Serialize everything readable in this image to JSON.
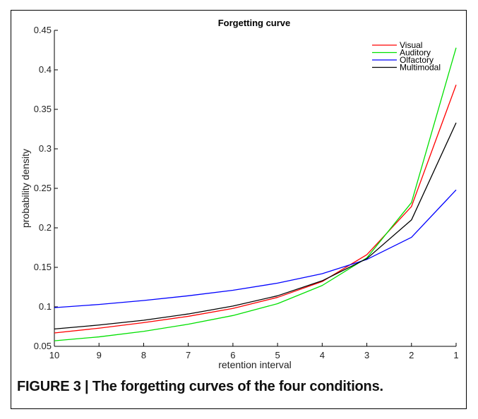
{
  "caption": "FIGURE 3 | The forgetting curves of the four conditions.",
  "chart_data": {
    "type": "line",
    "title": "Forgetting curve",
    "xlabel": "retention interval",
    "ylabel": "probability density",
    "x": [
      10,
      9,
      8,
      7,
      6,
      5,
      4,
      3,
      2,
      1
    ],
    "x_reversed": true,
    "xlim": [
      10,
      1
    ],
    "ylim": [
      0.05,
      0.45
    ],
    "xticks": [
      "10",
      "9",
      "8",
      "7",
      "6",
      "5",
      "4",
      "3",
      "2",
      "1"
    ],
    "yticks": [
      "0.05",
      "0.1",
      "0.15",
      "0.2",
      "0.25",
      "0.3",
      "0.35",
      "0.4",
      "0.45"
    ],
    "grid": false,
    "legend_position": "top-right",
    "series": [
      {
        "name": "Visual",
        "color": "#ff0000",
        "values": [
          0.067,
          0.073,
          0.08,
          0.088,
          0.098,
          0.112,
          0.132,
          0.166,
          0.227,
          0.381
        ]
      },
      {
        "name": "Auditory",
        "color": "#00e000",
        "values": [
          0.057,
          0.062,
          0.069,
          0.078,
          0.089,
          0.104,
          0.127,
          0.162,
          0.232,
          0.428
        ]
      },
      {
        "name": "Olfactory",
        "color": "#0000ff",
        "values": [
          0.099,
          0.103,
          0.108,
          0.114,
          0.121,
          0.13,
          0.142,
          0.16,
          0.188,
          0.248
        ]
      },
      {
        "name": "Multimodal",
        "color": "#000000",
        "values": [
          0.072,
          0.077,
          0.083,
          0.091,
          0.101,
          0.114,
          0.133,
          0.161,
          0.21,
          0.333
        ]
      }
    ]
  }
}
